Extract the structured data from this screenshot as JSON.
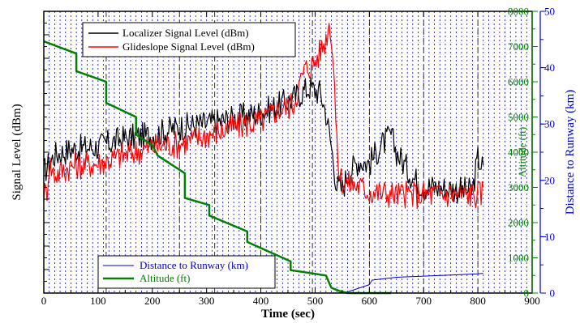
{
  "chart_data": {
    "type": "line",
    "xlabel": "Time (sec)",
    "xlim": [
      0,
      900
    ],
    "x_ticks": [
      "0",
      "100",
      "200",
      "300",
      "400",
      "500",
      "600",
      "700",
      "800",
      "900"
    ],
    "grid": true,
    "axes": [
      {
        "id": "signal",
        "side": "left",
        "label": "Signal Level (dBm)",
        "tick_labels_shown": false,
        "color": "#000000"
      },
      {
        "id": "altitude",
        "side": "right-inner",
        "label": "Altitude (ft)",
        "ylim": [
          0,
          8000
        ],
        "ticks": [
          "0",
          "1000",
          "2000",
          "3000",
          "4000",
          "5000",
          "6000",
          "7000",
          "8000"
        ],
        "color": "#008000"
      },
      {
        "id": "distance",
        "side": "right-outer",
        "label": "Distance to Runway (km)",
        "ylim": [
          0,
          50
        ],
        "ticks": [
          "0",
          "10",
          "20",
          "30",
          "40",
          "50"
        ],
        "color": "#0000cc"
      }
    ],
    "legends": [
      {
        "position": "top-left",
        "entries": [
          "Localizer Signal Level (dBm)",
          "Glideslope Signal Level (dBm)"
        ]
      },
      {
        "position": "bottom-left",
        "entries": [
          "Distance to Runway (km)",
          "Altitude (ft)"
        ]
      }
    ],
    "series": [
      {
        "name": "Localizer Signal Level (dBm)",
        "axis": "signal",
        "color": "#000000",
        "x": [
          0,
          20,
          50,
          100,
          150,
          200,
          250,
          300,
          350,
          400,
          450,
          490,
          510,
          520,
          530,
          540,
          550,
          560,
          580,
          600,
          620,
          640,
          650,
          660,
          680,
          700,
          750,
          790,
          800,
          810
        ],
        "y": [
          0.43,
          0.49,
          0.51,
          0.52,
          0.55,
          0.56,
          0.59,
          0.6,
          0.62,
          0.64,
          0.68,
          0.73,
          0.71,
          0.64,
          0.52,
          0.38,
          0.37,
          0.42,
          0.47,
          0.46,
          0.52,
          0.56,
          0.5,
          0.47,
          0.41,
          0.38,
          0.37,
          0.36,
          0.48,
          0.44
        ],
        "noise": 0.05
      },
      {
        "name": "Glideslope Signal Level (dBm)",
        "axis": "signal",
        "color": "#ff0000",
        "x": [
          0,
          5,
          10,
          20,
          50,
          100,
          150,
          200,
          250,
          300,
          350,
          400,
          430,
          460,
          480,
          500,
          510,
          520,
          525,
          530,
          535,
          540,
          545,
          550,
          560,
          580,
          600,
          650,
          700,
          750,
          800,
          810
        ],
        "y": [
          0.36,
          0.35,
          0.46,
          0.42,
          0.45,
          0.46,
          0.49,
          0.52,
          0.53,
          0.56,
          0.59,
          0.61,
          0.65,
          0.67,
          0.79,
          0.82,
          0.86,
          0.9,
          0.96,
          0.92,
          0.78,
          0.52,
          0.42,
          0.4,
          0.39,
          0.38,
          0.36,
          0.35,
          0.35,
          0.35,
          0.35,
          0.36
        ],
        "noise": 0.05
      },
      {
        "name": "Distance to Runway (km)",
        "axis": "distance",
        "color": "#0000cc",
        "x": [
          540,
          560,
          600,
          605,
          650,
          700,
          750,
          800,
          810
        ],
        "y": [
          0,
          0.2,
          1.5,
          2.3,
          2.8,
          3.0,
          3.2,
          3.4,
          3.5
        ]
      },
      {
        "name": "Altitude (ft)",
        "axis": "altitude",
        "color": "#008000",
        "x": [
          0,
          60,
          60,
          115,
          115,
          170,
          170,
          200,
          210,
          260,
          260,
          305,
          305,
          375,
          375,
          455,
          455,
          520,
          530,
          545,
          560,
          640
        ],
        "y": [
          7150,
          6800,
          6300,
          6000,
          5400,
          5000,
          4500,
          4200,
          3900,
          3400,
          2700,
          2500,
          2200,
          1750,
          1450,
          900,
          650,
          500,
          150,
          60,
          0,
          0
        ]
      }
    ],
    "event_lines_x": [
      115,
      250,
      315,
      400,
      495,
      600,
      700,
      800
    ]
  }
}
